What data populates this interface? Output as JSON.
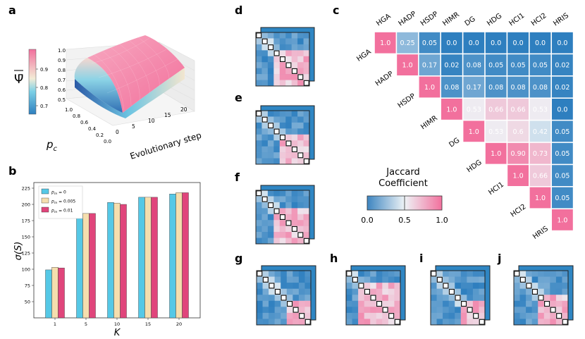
{
  "panels": {
    "a": "a",
    "b": "b",
    "c": "c",
    "d": "d",
    "e": "e",
    "f": "f",
    "g": "g",
    "h": "h",
    "i": "i",
    "j": "j"
  },
  "colors": {
    "low": "#2e7fbf",
    "mid": "#eef3f6",
    "high": "#f2709d",
    "bar_series": [
      "#55c8e6",
      "#f5deae",
      "#e0457b"
    ]
  },
  "panel_a": {
    "colorbar_label": "Ψ̄",
    "colorbar_ticks": [
      "0.9",
      "0.8",
      "0.7"
    ],
    "z_ticks": [
      "1.0",
      "0.9",
      "0.8",
      "0.7",
      "0.6",
      "0.5"
    ],
    "pc_label": "p",
    "pc_sub": "c",
    "pc_ticks": [
      "1.0",
      "0.8",
      "0.6",
      "0.4",
      "0.2",
      "0.0"
    ],
    "step_label": "Evolutionary step",
    "step_ticks": [
      "0",
      "5",
      "10",
      "15",
      "20"
    ]
  },
  "chart_data": {
    "type": "bar",
    "categories": [
      "1",
      "5",
      "10",
      "15",
      "20"
    ],
    "series": [
      {
        "name": "p_m = 0",
        "sub": "m",
        "rest": " = 0",
        "values": [
          99,
          186,
          203,
          211,
          216
        ]
      },
      {
        "name": "p_m = 0.005",
        "sub": "m",
        "rest": " = 0.005",
        "values": [
          103,
          186,
          202,
          211,
          218
        ]
      },
      {
        "name": "p_m = 0.01",
        "sub": "m",
        "rest": " = 0.01",
        "values": [
          102,
          186,
          200,
          211,
          218
        ]
      }
    ],
    "xlabel": "K",
    "ylabel": "σ(S)",
    "ylim": [
      25,
      225
    ],
    "yticks": [
      "50",
      "75",
      "100",
      "125",
      "150",
      "175",
      "200",
      "225"
    ],
    "legend": "top-left"
  },
  "jaccard": {
    "labels": [
      "HGA",
      "HADP",
      "HSDP",
      "HIMR",
      "DG",
      "HDG",
      "HCI1",
      "HCI2",
      "HRIS"
    ],
    "matrix": [
      [
        1.0,
        0.25,
        0.05,
        0.0,
        0.0,
        0.0,
        0.0,
        0.0,
        0.0
      ],
      [
        null,
        1.0,
        0.17,
        0.02,
        0.08,
        0.05,
        0.05,
        0.05,
        0.02
      ],
      [
        null,
        null,
        1.0,
        0.08,
        0.17,
        0.08,
        0.08,
        0.08,
        0.02
      ],
      [
        null,
        null,
        null,
        1.0,
        0.53,
        0.66,
        0.66,
        0.53,
        0.0
      ],
      [
        null,
        null,
        null,
        null,
        1.0,
        0.53,
        0.6,
        0.42,
        0.05
      ],
      [
        null,
        null,
        null,
        null,
        null,
        1.0,
        0.9,
        0.73,
        0.05
      ],
      [
        null,
        null,
        null,
        null,
        null,
        null,
        1.0,
        0.66,
        0.05
      ],
      [
        null,
        null,
        null,
        null,
        null,
        null,
        null,
        1.0,
        0.05
      ],
      [
        null,
        null,
        null,
        null,
        null,
        null,
        null,
        null,
        1.0
      ]
    ],
    "value_text": [
      [
        "1.0",
        "0.25",
        "0.05",
        "0.0",
        "0.0",
        "0.0",
        "0.0",
        "0.0",
        "0.0"
      ],
      [
        null,
        "1.0",
        "0.17",
        "0.02",
        "0.08",
        "0.05",
        "0.05",
        "0.05",
        "0.02"
      ],
      [
        null,
        null,
        "1.0",
        "0.08",
        "0.17",
        "0.08",
        "0.08",
        "0.08",
        "0.02"
      ],
      [
        null,
        null,
        null,
        "1.0",
        "0.53",
        "0.66",
        "0.66",
        "0.53",
        "0.0"
      ],
      [
        null,
        null,
        null,
        null,
        "1.0",
        "0.53",
        "0.6",
        "0.42",
        "0.05"
      ],
      [
        null,
        null,
        null,
        null,
        null,
        "1.0",
        "0.90",
        "0.73",
        "0.05"
      ],
      [
        null,
        null,
        null,
        null,
        null,
        null,
        "1.0",
        "0.66",
        "0.05"
      ],
      [
        null,
        null,
        null,
        null,
        null,
        null,
        null,
        "1.0",
        "0.05"
      ],
      [
        null,
        null,
        null,
        null,
        null,
        null,
        null,
        null,
        "1.0"
      ]
    ],
    "colorbar_title": [
      "Jaccard",
      "Coefficient"
    ],
    "colorbar_ticks": [
      "0.0",
      "0.5",
      "1.0"
    ]
  }
}
